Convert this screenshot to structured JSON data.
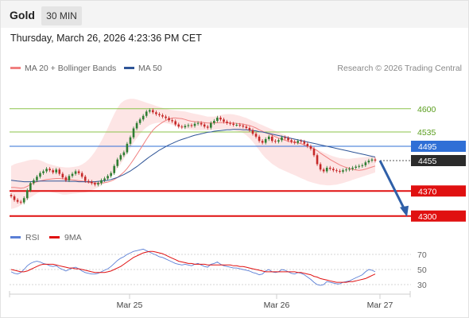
{
  "header": {
    "instrument": "Gold",
    "timeframe": "30 MIN",
    "datetime": "Thursday, March 26, 2026 4:23:36 PM CET"
  },
  "legend": {
    "ma20": "MA 20 + Bollinger Bands",
    "ma50": "MA 50",
    "copyright": "Research © 2026 Trading Central"
  },
  "rsi_legend": {
    "rsi": "RSI",
    "ma9": "9MA"
  },
  "colors": {
    "ma20": "#f08080",
    "ma50": "#2f5597",
    "resistance": "#8bc34a",
    "pivot": "#2f6fd6",
    "support": "#e01010",
    "bollinger_fill": "#fde0e0",
    "candle_up": "#2e7d32",
    "candle_down": "#c62828",
    "rsi": "#5b7fd6",
    "rsi_ma": "#e01010",
    "arrow": "#2f5fa8"
  },
  "chart_data": [
    {
      "type": "candlestick",
      "title": "",
      "price_ylim": [
        4255,
        4655
      ],
      "x_tick_labels": [
        "Mar 25",
        "Mar 26",
        "Mar 27"
      ],
      "levels": [
        {
          "label": "4600",
          "value": 4600,
          "kind": "resistance"
        },
        {
          "label": "4535",
          "value": 4535,
          "kind": "resistance"
        },
        {
          "label": "4495",
          "value": 4495,
          "kind": "pivot"
        },
        {
          "label": "4455",
          "value": 4455,
          "kind": "last"
        },
        {
          "label": "4370",
          "value": 4370,
          "kind": "support"
        },
        {
          "label": "4300",
          "value": 4300,
          "kind": "support"
        }
      ],
      "close": [
        4355,
        4345,
        4340,
        4338,
        4350,
        4372,
        4392,
        4400,
        4410,
        4420,
        4425,
        4432,
        4428,
        4422,
        4430,
        4418,
        4408,
        4400,
        4412,
        4418,
        4425,
        4420,
        4410,
        4398,
        4396,
        4392,
        4388,
        4392,
        4400,
        4405,
        4412,
        4420,
        4440,
        4458,
        4470,
        4478,
        4502,
        4520,
        4545,
        4560,
        4570,
        4580,
        4592,
        4596,
        4590,
        4585,
        4582,
        4578,
        4574,
        4568,
        4565,
        4556,
        4550,
        4548,
        4552,
        4554,
        4552,
        4558,
        4560,
        4556,
        4550,
        4547,
        4560,
        4566,
        4575,
        4570,
        4564,
        4560,
        4558,
        4555,
        4555,
        4553,
        4550,
        4546,
        4540,
        4530,
        4522,
        4510,
        4505,
        4515,
        4522,
        4510,
        4508,
        4512,
        4520,
        4518,
        4512,
        4508,
        4505,
        4510,
        4508,
        4502,
        4495,
        4488,
        4470,
        4445,
        4430,
        4425,
        4435,
        4432,
        4428,
        4426,
        4424,
        4428,
        4430,
        4432,
        4435,
        4438,
        4440,
        4442,
        4450,
        4455,
        4458,
        4455
      ],
      "ma20": [
        4380,
        4380,
        4379,
        4378,
        4379,
        4383,
        4388,
        4392,
        4396,
        4398,
        4400,
        4402,
        4403,
        4404,
        4405,
        4405,
        4404,
        4403,
        4402,
        4401,
        4400,
        4399,
        4398,
        4396,
        4394,
        4393,
        4392,
        4392,
        4392,
        4393,
        4395,
        4398,
        4402,
        4408,
        4415,
        4423,
        4433,
        4445,
        4458,
        4472,
        4486,
        4500,
        4514,
        4528,
        4540,
        4549,
        4556,
        4562,
        4567,
        4571,
        4574,
        4574,
        4573,
        4572,
        4570,
        4567,
        4565,
        4564,
        4563,
        4562,
        4561,
        4560,
        4560,
        4560,
        4561,
        4561,
        4561,
        4561,
        4560,
        4560,
        4559,
        4558,
        4557,
        4555,
        4553,
        4550,
        4546,
        4541,
        4537,
        4533,
        4530,
        4526,
        4522,
        4518,
        4515,
        4512,
        4509,
        4507,
        4506,
        4504,
        4502,
        4499,
        4496,
        4493,
        4488,
        4483,
        4476,
        4470,
        4464,
        4458,
        4453,
        4448,
        4443,
        4439,
        4436,
        4433,
        4430,
        4429,
        4428,
        4429,
        4431,
        4434,
        4437,
        4440
      ],
      "ma50": [
        4400,
        4399,
        4398,
        4397,
        4396,
        4396,
        4396,
        4397,
        4397,
        4398,
        4398,
        4398,
        4398,
        4398,
        4398,
        4398,
        4398,
        4398,
        4397,
        4397,
        4397,
        4396,
        4396,
        4396,
        4396,
        4396,
        4396,
        4397,
        4398,
        4399,
        4400,
        4402,
        4405,
        4408,
        4412,
        4416,
        4421,
        4426,
        4432,
        4438,
        4445,
        4452,
        4459,
        4466,
        4472,
        4478,
        4484,
        4489,
        4494,
        4499,
        4503,
        4507,
        4511,
        4514,
        4517,
        4520,
        4523,
        4526,
        4528,
        4530,
        4532,
        4534,
        4535,
        4537,
        4538,
        4539,
        4540,
        4541,
        4541,
        4542,
        4542,
        4542,
        4541,
        4541,
        4540,
        4539,
        4538,
        4536,
        4535,
        4533,
        4531,
        4529,
        4527,
        4525,
        4523,
        4521,
        4519,
        4517,
        4515,
        4513,
        4511,
        4509,
        4507,
        4505,
        4503,
        4501,
        4499,
        4497,
        4495,
        4493,
        4491,
        4489,
        4487,
        4485,
        4483,
        4481,
        4479,
        4477,
        4475,
        4473,
        4471,
        4469,
        4467,
        4465
      ],
      "bollinger_upper": [
        4440,
        4445,
        4448,
        4450,
        4452,
        4455,
        4457,
        4458,
        4458,
        4456,
        4452,
        4448,
        4445,
        4442,
        4440,
        4438,
        4437,
        4436,
        4436,
        4437,
        4438,
        4440,
        4444,
        4450,
        4458,
        4468,
        4480,
        4494,
        4510,
        4528,
        4546,
        4566,
        4585,
        4602,
        4615,
        4622,
        4626,
        4628,
        4628,
        4626,
        4623,
        4620,
        4617,
        4614,
        4611,
        4608,
        4605,
        4602,
        4600,
        4598,
        4596,
        4595,
        4594,
        4593,
        4592,
        4590,
        4588,
        4586,
        4584,
        4582,
        4580,
        4578,
        4578,
        4578,
        4580,
        4582,
        4584,
        4585,
        4585,
        4584,
        4582,
        4580,
        4577,
        4574,
        4570,
        4566,
        4562,
        4558,
        4554,
        4550,
        4546,
        4542,
        4538,
        4534,
        4530,
        4526,
        4522,
        4518,
        4514,
        4510,
        4506,
        4502,
        4498,
        4494,
        4490,
        4486,
        4482,
        4478,
        4474,
        4470,
        4467,
        4464,
        4462,
        4461,
        4460,
        4460,
        4461,
        4462,
        4463,
        4464,
        4465,
        4466,
        4467,
        4468
      ],
      "bollinger_lower": [
        4320,
        4322,
        4325,
        4330,
        4337,
        4345,
        4352,
        4358,
        4363,
        4368,
        4370,
        4370,
        4368,
        4366,
        4364,
        4362,
        4360,
        4360,
        4361,
        4362,
        4363,
        4364,
        4365,
        4366,
        4368,
        4372,
        4376,
        4380,
        4385,
        4392,
        4400,
        4410,
        4420,
        4432,
        4446,
        4460,
        4475,
        4490,
        4505,
        4518,
        4530,
        4540,
        4548,
        4554,
        4558,
        4560,
        4561,
        4561,
        4560,
        4558,
        4555,
        4552,
        4549,
        4546,
        4544,
        4542,
        4541,
        4540,
        4540,
        4540,
        4540,
        4540,
        4540,
        4541,
        4542,
        4542,
        4542,
        4542,
        4541,
        4540,
        4538,
        4536,
        4532,
        4526,
        4518,
        4508,
        4496,
        4484,
        4472,
        4462,
        4454,
        4446,
        4440,
        4434,
        4430,
        4426,
        4422,
        4418,
        4414,
        4410,
        4406,
        4402,
        4398,
        4395,
        4392,
        4390,
        4388,
        4387,
        4386,
        4386,
        4387,
        4388,
        4390,
        4392,
        4395,
        4398,
        4401,
        4404,
        4407,
        4410,
        4413,
        4416,
        4419,
        4422
      ],
      "forecast_arrow": {
        "from": 4455,
        "to": 4300
      }
    },
    {
      "type": "line",
      "title": "",
      "ylim": [
        20,
        80
      ],
      "y_ticks": [
        "70",
        "50",
        "30"
      ],
      "series": [
        {
          "name": "RSI",
          "values": [
            47,
            45,
            44,
            46,
            50,
            55,
            58,
            60,
            61,
            60,
            58,
            57,
            55,
            54,
            55,
            52,
            50,
            48,
            50,
            52,
            53,
            51,
            48,
            46,
            45,
            44,
            44,
            45,
            47,
            49,
            51,
            54,
            58,
            62,
            65,
            67,
            70,
            72,
            74,
            75,
            76,
            77,
            75,
            73,
            71,
            69,
            67,
            66,
            64,
            62,
            60,
            58,
            57,
            56,
            57,
            56,
            55,
            57,
            58,
            56,
            54,
            53,
            57,
            58,
            60,
            57,
            55,
            54,
            53,
            52,
            52,
            51,
            50,
            49,
            48,
            46,
            45,
            43,
            44,
            48,
            50,
            47,
            46,
            47,
            50,
            49,
            47,
            45,
            44,
            46,
            45,
            43,
            40,
            37,
            33,
            30,
            29,
            30,
            34,
            33,
            32,
            31,
            31,
            33,
            34,
            35,
            37,
            39,
            41,
            43,
            47,
            50,
            49,
            47
          ]
        },
        {
          "name": "9MA",
          "values": [
            50,
            49,
            48,
            47,
            47,
            48,
            50,
            52,
            54,
            56,
            57,
            57,
            57,
            57,
            56,
            55,
            54,
            53,
            52,
            52,
            51,
            51,
            50,
            49,
            48,
            47,
            46,
            46,
            46,
            46,
            47,
            48,
            50,
            52,
            54,
            57,
            60,
            63,
            66,
            68,
            70,
            72,
            73,
            74,
            74,
            73,
            72,
            71,
            69,
            67,
            65,
            63,
            61,
            60,
            59,
            58,
            58,
            57,
            57,
            57,
            57,
            56,
            56,
            56,
            56,
            56,
            56,
            56,
            56,
            55,
            55,
            54,
            54,
            53,
            52,
            51,
            50,
            49,
            48,
            47,
            47,
            47,
            47,
            47,
            47,
            47,
            47,
            47,
            47,
            46,
            46,
            45,
            44,
            43,
            41,
            40,
            38,
            37,
            36,
            35,
            34,
            33,
            33,
            33,
            33,
            34,
            34,
            35,
            36,
            37,
            38,
            40,
            42,
            44
          ]
        }
      ]
    }
  ]
}
